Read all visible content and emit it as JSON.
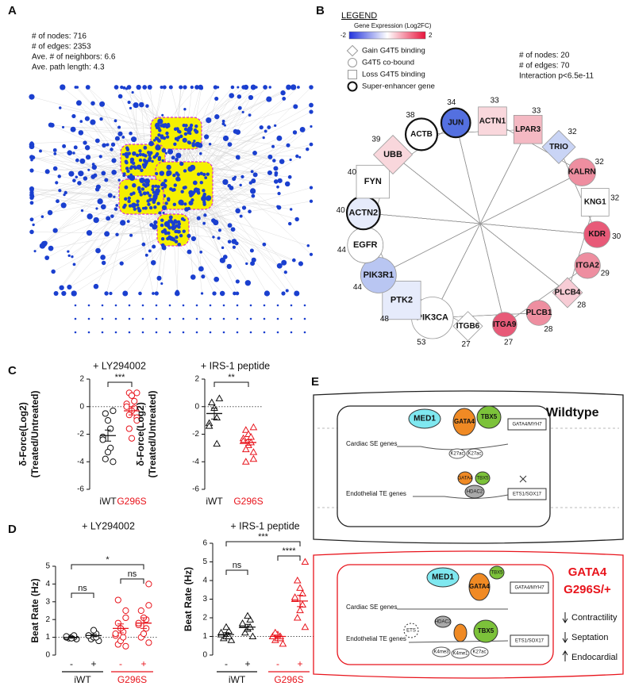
{
  "panel_labels": [
    "A",
    "B",
    "C",
    "D",
    "E"
  ],
  "panel_a": {
    "stats": [
      "# of nodes: 716",
      "# of edges: 2353",
      "Ave. # of neighbors: 6.6",
      "Ave. path length: 4.3"
    ]
  },
  "panel_b": {
    "legend_title": "LEGEND",
    "colorbar": {
      "title": "Gene Expression (Log2FC)",
      "range": [
        -2,
        2
      ],
      "colors": [
        "#2233dd",
        "#ffffff",
        "#e8143c"
      ]
    },
    "shape_legend": [
      {
        "label": "Gain G4T5 binding",
        "shape": "diamond"
      },
      {
        "label": "G4T5 co-bound",
        "shape": "circle"
      },
      {
        "label": "Loss G4T5 binding",
        "shape": "square"
      },
      {
        "label": "Super-enhancer gene",
        "shape": "bold-circle"
      }
    ],
    "stats": [
      "# of nodes: 20",
      "# of edges: 70",
      "Interaction p<6.5e-11"
    ],
    "nodes": [
      {
        "label": "ACTN1",
        "degree": 33,
        "shape": "square",
        "color": "#f9d7dc",
        "super_enhancer": false
      },
      {
        "label": "LPAR3",
        "degree": 33,
        "shape": "square",
        "color": "#f4b9c3",
        "super_enhancer": false
      },
      {
        "label": "TRIO",
        "degree": 32,
        "shape": "diamond",
        "color": "#c9d4f5",
        "super_enhancer": false
      },
      {
        "label": "KALRN",
        "degree": 32,
        "shape": "circle",
        "color": "#ee8ea0",
        "super_enhancer": false
      },
      {
        "label": "KNG1",
        "degree": 32,
        "shape": "square",
        "color": "#ffffff",
        "super_enhancer": false
      },
      {
        "label": "KDR",
        "degree": 30,
        "shape": "circle",
        "color": "#e85a78",
        "super_enhancer": false
      },
      {
        "label": "ITGA2",
        "degree": 29,
        "shape": "circle",
        "color": "#ee8ea0",
        "super_enhancer": false
      },
      {
        "label": "PLCB4",
        "degree": 28,
        "shape": "diamond",
        "color": "#f7ccd5",
        "super_enhancer": false
      },
      {
        "label": "PLCB1",
        "degree": 28,
        "shape": "circle",
        "color": "#ee8ea0",
        "super_enhancer": false
      },
      {
        "label": "ITGA9",
        "degree": 27,
        "shape": "circle",
        "color": "#e85a78",
        "super_enhancer": false
      },
      {
        "label": "ITGB6",
        "degree": 27,
        "shape": "diamond",
        "color": "#ffffff",
        "super_enhancer": false
      },
      {
        "label": "PIK3CA",
        "degree": 53,
        "shape": "circle",
        "color": "#ffffff",
        "super_enhancer": false
      },
      {
        "label": "PTK2",
        "degree": 48,
        "shape": "square",
        "color": "#e6ebfb",
        "super_enhancer": false
      },
      {
        "label": "PIK3R1",
        "degree": 44,
        "shape": "circle",
        "color": "#b9c6f2",
        "super_enhancer": false
      },
      {
        "label": "EGFR",
        "degree": 44,
        "shape": "circle",
        "color": "#ffffff",
        "super_enhancer": false
      },
      {
        "label": "ACTN2",
        "degree": 40,
        "shape": "circle",
        "color": "#e6ebfb",
        "super_enhancer": true
      },
      {
        "label": "FYN",
        "degree": 40,
        "shape": "square",
        "color": "#ffffff",
        "super_enhancer": false
      },
      {
        "label": "UBB",
        "degree": 39,
        "shape": "diamond",
        "color": "#f9d7dc",
        "super_enhancer": false
      },
      {
        "label": "ACTB",
        "degree": 38,
        "shape": "circle",
        "color": "#ffffff",
        "super_enhancer": true
      },
      {
        "label": "JUN",
        "degree": 34,
        "shape": "circle",
        "color": "#5470e0",
        "super_enhancer": true
      }
    ]
  },
  "chart_data": [
    {
      "type": "dot-plot",
      "title": "+ LY294002",
      "ylabel": [
        "δ-Force(Log2)",
        "(Treated/Untreated)"
      ],
      "ylim": [
        -6,
        2
      ],
      "yticks": [
        -6,
        -4,
        -2,
        0,
        2
      ],
      "reference_line": 0,
      "marker": "circle",
      "categories": [
        "iWT",
        "G296S"
      ],
      "colors": [
        "#111111",
        "#e8141c"
      ],
      "points": [
        [
          -0.3,
          -0.5,
          -1.0,
          -1.6,
          -2.2,
          -2.4,
          -3.0,
          -3.3,
          -3.8,
          -4.0
        ],
        [
          1.0,
          1.0,
          0.8,
          0.4,
          0.2,
          0.0,
          -0.1,
          -0.3,
          -0.6,
          -0.8,
          -1.0,
          -1.6,
          -2.3
        ]
      ],
      "means": [
        -2.1,
        -0.3
      ],
      "errors": [
        0.4,
        0.3
      ],
      "significance": [
        {
          "label": "***",
          "between": [
            0,
            1
          ]
        }
      ]
    },
    {
      "type": "dot-plot",
      "title": "+ IRS-1 peptide",
      "ylabel": [
        "δ-Force(Log2)",
        "(Treated/Untreated)"
      ],
      "ylim": [
        -6,
        2
      ],
      "yticks": [
        -6,
        -4,
        -2,
        0,
        2
      ],
      "reference_line": 0,
      "marker": "triangle",
      "categories": [
        "iWT",
        "G296S"
      ],
      "colors": [
        "#111111",
        "#e8141c"
      ],
      "points": [
        [
          0.6,
          0.3,
          -0.1,
          -0.8,
          -1.2,
          -1.4,
          -2.7
        ],
        [
          -1.5,
          -1.7,
          -2.0,
          -2.2,
          -2.3,
          -2.5,
          -2.6,
          -2.8,
          -3.1,
          -3.3,
          -3.8,
          -4.0
        ]
      ],
      "means": [
        -0.5,
        -2.6
      ],
      "errors": [
        0.4,
        0.2
      ],
      "significance": [
        {
          "label": "**",
          "between": [
            0,
            1
          ]
        }
      ]
    },
    {
      "type": "dot-plot",
      "title": "+ LY294002",
      "ylabel": [
        "Beat Rate (Hz)"
      ],
      "ylim": [
        0,
        5
      ],
      "yticks": [
        0,
        1,
        2,
        3,
        4,
        5
      ],
      "reference_line": 1,
      "marker": "circle",
      "categories": [
        "-",
        "+",
        "-",
        "+"
      ],
      "colors": [
        "#111111",
        "#111111",
        "#e8141c",
        "#e8141c"
      ],
      "groups": [
        {
          "label": "iWT",
          "categories": [
            0,
            1
          ],
          "color": "#111111"
        },
        {
          "label": "G296S",
          "categories": [
            2,
            3
          ],
          "color": "#e8141c"
        }
      ],
      "points": [
        [
          0.9,
          0.95,
          1.0,
          1.0,
          1.0,
          1.05,
          1.1,
          0.95
        ],
        [
          0.8,
          0.9,
          1.0,
          1.0,
          1.1,
          1.1,
          1.2,
          1.4
        ],
        [
          0.5,
          0.6,
          0.8,
          1.0,
          1.1,
          1.2,
          1.3,
          1.5,
          1.8,
          2.1,
          2.5,
          3.1
        ],
        [
          0.7,
          1.0,
          1.2,
          1.5,
          1.7,
          1.8,
          2.0,
          2.1,
          2.5,
          2.8,
          4.0
        ]
      ],
      "means": [
        1.0,
        1.1,
        1.5,
        1.8
      ],
      "errors": [
        0.05,
        0.07,
        0.25,
        0.3
      ],
      "significance": [
        {
          "label": "*",
          "between": [
            0,
            3
          ]
        },
        {
          "label": "ns",
          "between": [
            2,
            3
          ]
        },
        {
          "label": "ns",
          "between": [
            0,
            1
          ]
        }
      ]
    },
    {
      "type": "dot-plot",
      "title": "+ IRS-1 peptide",
      "ylabel": [
        "Beat Rate (Hz)"
      ],
      "ylim": [
        0,
        6
      ],
      "yticks": [
        0,
        1,
        2,
        3,
        4,
        5,
        6
      ],
      "reference_line": 1,
      "marker": "triangle",
      "categories": [
        "-",
        "+",
        "-",
        "+"
      ],
      "colors": [
        "#111111",
        "#111111",
        "#e8141c",
        "#e8141c"
      ],
      "groups": [
        {
          "label": "iWT",
          "categories": [
            0,
            1
          ],
          "color": "#111111"
        },
        {
          "label": "G296S",
          "categories": [
            2,
            3
          ],
          "color": "#e8141c"
        }
      ],
      "points": [
        [
          0.8,
          0.9,
          1.0,
          1.0,
          1.1,
          1.2,
          1.3,
          1.5
        ],
        [
          1.0,
          1.2,
          1.4,
          1.5,
          1.6,
          1.7,
          1.9,
          2.1
        ],
        [
          0.6,
          0.8,
          0.9,
          0.9,
          1.0,
          1.0,
          1.0,
          1.1,
          1.2
        ],
        [
          1.5,
          2.0,
          2.4,
          2.7,
          3.0,
          3.1,
          3.3,
          3.6,
          4.0,
          5.0
        ]
      ],
      "means": [
        1.1,
        1.5,
        1.0,
        2.9
      ],
      "errors": [
        0.1,
        0.15,
        0.06,
        0.3
      ],
      "significance": [
        {
          "label": "***",
          "between": [
            0,
            3
          ]
        },
        {
          "label": "****",
          "between": [
            2,
            3
          ]
        },
        {
          "label": "ns",
          "between": [
            0,
            1
          ]
        }
      ]
    }
  ],
  "panel_e": {
    "wildtype": {
      "title": "Wildtype",
      "cardiac": "Cardiac SE genes",
      "endothelial": "Endothelial TE genes",
      "med1": "MED1",
      "gata4": "GATA4",
      "tbx5": "TBX5",
      "mark": "K27ac",
      "hdac2": "HDAC2",
      "target_cardiac": "GATA4/MYH7",
      "target_endo": "ETS1/SOX17",
      "small_gata4": "GATA4",
      "small_tbx5": "TBX5"
    },
    "mutant": {
      "title": [
        "GATA4",
        "G296S/+"
      ],
      "cardiac": "Cardiac SE genes",
      "endothelial": "Endothelial TE genes",
      "med1": "MED1",
      "gata4": "GATA4",
      "tbx5": "TBX5",
      "hdac2": "HDAC2",
      "ets": "ETS",
      "me3": "K4me3",
      "me1": "K4me1",
      "ac": "K27ac",
      "target_cardiac": "GATA4/MYH7",
      "target_endo": "ETS1/SOX17",
      "effects": [
        "Contractility",
        "Septation",
        "Endocardial"
      ]
    }
  }
}
